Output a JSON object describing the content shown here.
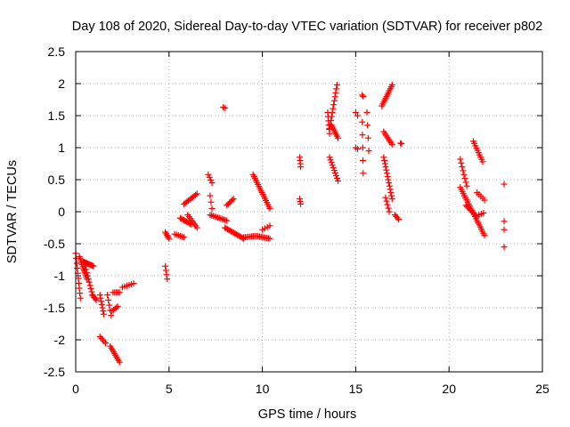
{
  "chart_data": {
    "type": "scatter",
    "title": "Day 108 of 2020, Sidereal Day-to-day VTEC variation (SDTVAR) for receiver p802",
    "xlabel": "GPS time / hours",
    "ylabel": "SDTVAR / TECUs",
    "xlim": [
      0,
      25
    ],
    "ylim": [
      -2.5,
      2.5
    ],
    "xticks": [
      0,
      5,
      10,
      15,
      20,
      25
    ],
    "yticks": [
      -2.5,
      -2,
      -1.5,
      -1,
      -0.5,
      0,
      0.5,
      1,
      1.5,
      2,
      2.5
    ],
    "marker": "+",
    "color": "#ff0000",
    "grid": true,
    "segments": [
      {
        "x0": 0.0,
        "y0": -0.65,
        "x1": 0.25,
        "y1": -1.35,
        "n": 10
      },
      {
        "x0": 0.2,
        "y0": -0.7,
        "x1": 0.6,
        "y1": -1.05,
        "n": 12
      },
      {
        "x0": 0.4,
        "y0": -0.78,
        "x1": 0.95,
        "y1": -0.85,
        "n": 12
      },
      {
        "x0": 0.5,
        "y0": -0.85,
        "x1": 0.9,
        "y1": -1.3,
        "n": 10
      },
      {
        "x0": 0.9,
        "y0": -1.3,
        "x1": 1.1,
        "y1": -1.38,
        "n": 5
      },
      {
        "x0": 1.3,
        "y0": -1.3,
        "x1": 1.5,
        "y1": -1.6,
        "n": 7
      },
      {
        "x0": 1.3,
        "y0": -1.95,
        "x1": 1.6,
        "y1": -2.05,
        "n": 5
      },
      {
        "x0": 1.7,
        "y0": -1.3,
        "x1": 1.9,
        "y1": -1.62,
        "n": 5
      },
      {
        "x0": 1.85,
        "y0": -2.1,
        "x1": 2.35,
        "y1": -2.35,
        "n": 10
      },
      {
        "x0": 1.95,
        "y0": -1.55,
        "x1": 2.25,
        "y1": -1.48,
        "n": 5
      },
      {
        "x0": 2.0,
        "y0": -1.26,
        "x1": 2.35,
        "y1": -1.26,
        "n": 5
      },
      {
        "x0": 2.5,
        "y0": -1.18,
        "x1": 3.1,
        "y1": -1.12,
        "n": 6
      },
      {
        "x0": 4.8,
        "y0": -0.85,
        "x1": 4.9,
        "y1": -1.05,
        "n": 4
      },
      {
        "x0": 4.8,
        "y0": -0.32,
        "x1": 5.0,
        "y1": -0.42,
        "n": 5
      },
      {
        "x0": 5.3,
        "y0": -0.35,
        "x1": 5.8,
        "y1": -0.4,
        "n": 6
      },
      {
        "x0": 5.6,
        "y0": -0.1,
        "x1": 6.2,
        "y1": -0.2,
        "n": 10
      },
      {
        "x0": 5.8,
        "y0": 0.12,
        "x1": 6.5,
        "y1": 0.28,
        "n": 10
      },
      {
        "x0": 6.0,
        "y0": -0.05,
        "x1": 6.5,
        "y1": -0.25,
        "n": 8
      },
      {
        "x0": 7.1,
        "y0": 0.58,
        "x1": 7.3,
        "y1": 0.45,
        "n": 4
      },
      {
        "x0": 7.2,
        "y0": 0.25,
        "x1": 7.3,
        "y1": 0.05,
        "n": 3
      },
      {
        "x0": 7.2,
        "y0": -0.05,
        "x1": 8.1,
        "y1": -0.14,
        "n": 12
      },
      {
        "x0": 7.9,
        "y0": 1.63,
        "x1": 8.0,
        "y1": 1.62,
        "n": 2
      },
      {
        "x0": 8.0,
        "y0": -0.25,
        "x1": 9.0,
        "y1": -0.42,
        "n": 16
      },
      {
        "x0": 8.1,
        "y0": 0.1,
        "x1": 8.45,
        "y1": 0.2,
        "n": 6
      },
      {
        "x0": 9.0,
        "y0": -0.4,
        "x1": 9.6,
        "y1": -0.38,
        "n": 8
      },
      {
        "x0": 9.5,
        "y0": 0.58,
        "x1": 10.4,
        "y1": 0.05,
        "n": 18
      },
      {
        "x0": 9.7,
        "y0": -0.38,
        "x1": 10.4,
        "y1": -0.42,
        "n": 10
      },
      {
        "x0": 10.0,
        "y0": -0.28,
        "x1": 10.4,
        "y1": -0.22,
        "n": 4
      },
      {
        "x0": 12.0,
        "y0": 0.85,
        "x1": 12.05,
        "y1": 0.7,
        "n": 4
      },
      {
        "x0": 12.0,
        "y0": 0.2,
        "x1": 12.05,
        "y1": 0.12,
        "n": 3
      },
      {
        "x0": 13.5,
        "y0": 1.55,
        "x1": 13.6,
        "y1": 1.22,
        "n": 6
      },
      {
        "x0": 13.6,
        "y0": 1.3,
        "x1": 14.0,
        "y1": 1.98,
        "n": 12
      },
      {
        "x0": 13.6,
        "y0": 0.85,
        "x1": 14.05,
        "y1": 0.48,
        "n": 10
      },
      {
        "x0": 13.7,
        "y0": 1.35,
        "x1": 14.05,
        "y1": 1.15,
        "n": 8
      },
      {
        "x0": 15.0,
        "y0": 1.55,
        "x1": 15.1,
        "y1": 1.5,
        "n": 2
      },
      {
        "x0": 15.0,
        "y0": 1.0,
        "x1": 15.1,
        "y1": 0.98,
        "n": 2
      },
      {
        "x0": 15.35,
        "y0": 1.82,
        "x1": 15.4,
        "y1": 1.8,
        "n": 2
      },
      {
        "x0": 15.35,
        "y0": 1.4,
        "x1": 15.4,
        "y1": 0.6,
        "n": 5
      },
      {
        "x0": 15.6,
        "y0": 1.55,
        "x1": 15.7,
        "y1": 0.95,
        "n": 4
      },
      {
        "x0": 16.4,
        "y0": 1.65,
        "x1": 16.95,
        "y1": 1.98,
        "n": 12
      },
      {
        "x0": 16.5,
        "y0": 1.25,
        "x1": 16.95,
        "y1": 1.05,
        "n": 8
      },
      {
        "x0": 16.5,
        "y0": 0.85,
        "x1": 16.95,
        "y1": 0.2,
        "n": 14
      },
      {
        "x0": 16.6,
        "y0": 0.22,
        "x1": 16.8,
        "y1": 0.0,
        "n": 5
      },
      {
        "x0": 17.1,
        "y0": -0.05,
        "x1": 17.3,
        "y1": -0.12,
        "n": 4
      },
      {
        "x0": 17.4,
        "y0": 1.07,
        "x1": 17.45,
        "y1": 1.06,
        "n": 2
      },
      {
        "x0": 20.6,
        "y0": 0.82,
        "x1": 20.95,
        "y1": 0.4,
        "n": 8
      },
      {
        "x0": 20.6,
        "y0": 0.38,
        "x1": 21.9,
        "y1": -0.37,
        "n": 24
      },
      {
        "x0": 20.9,
        "y0": 0.1,
        "x1": 21.5,
        "y1": -0.08,
        "n": 10
      },
      {
        "x0": 21.3,
        "y0": 1.1,
        "x1": 21.8,
        "y1": 0.78,
        "n": 10
      },
      {
        "x0": 21.5,
        "y0": 0.3,
        "x1": 21.9,
        "y1": 0.18,
        "n": 5
      },
      {
        "x0": 21.6,
        "y0": -0.05,
        "x1": 21.85,
        "y1": -0.02,
        "n": 3
      },
      {
        "x0": 22.95,
        "y0": 0.43,
        "x1": 22.97,
        "y1": 0.43,
        "n": 1
      },
      {
        "x0": 22.95,
        "y0": -0.15,
        "x1": 22.97,
        "y1": -0.15,
        "n": 1
      },
      {
        "x0": 22.95,
        "y0": -0.28,
        "x1": 22.97,
        "y1": -0.28,
        "n": 1
      },
      {
        "x0": 22.95,
        "y0": -0.55,
        "x1": 22.97,
        "y1": -0.55,
        "n": 1
      }
    ]
  }
}
